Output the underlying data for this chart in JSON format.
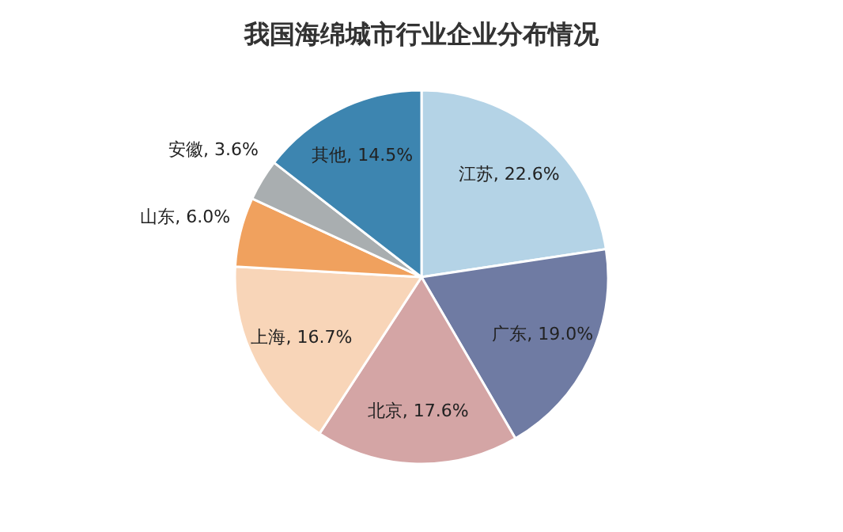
{
  "chart_data": {
    "type": "pie",
    "title": "我国海绵城市行业企业分布情况",
    "categories": [
      "江苏",
      "广东",
      "北京",
      "上海",
      "山东",
      "安徽",
      "其他"
    ],
    "values": [
      22.6,
      19.0,
      17.6,
      16.7,
      6.0,
      3.6,
      14.5
    ],
    "colors": [
      "#b4d3e6",
      "#6f7ba3",
      "#d4a5a5",
      "#f8d5b8",
      "#f0a15e",
      "#a9aeb0",
      "#3d85b0"
    ],
    "value_labels": [
      "22.6%",
      "19.0%",
      "17.6%",
      "16.7%",
      "6.0%",
      "3.6%",
      "14.5%"
    ],
    "legend": false
  }
}
